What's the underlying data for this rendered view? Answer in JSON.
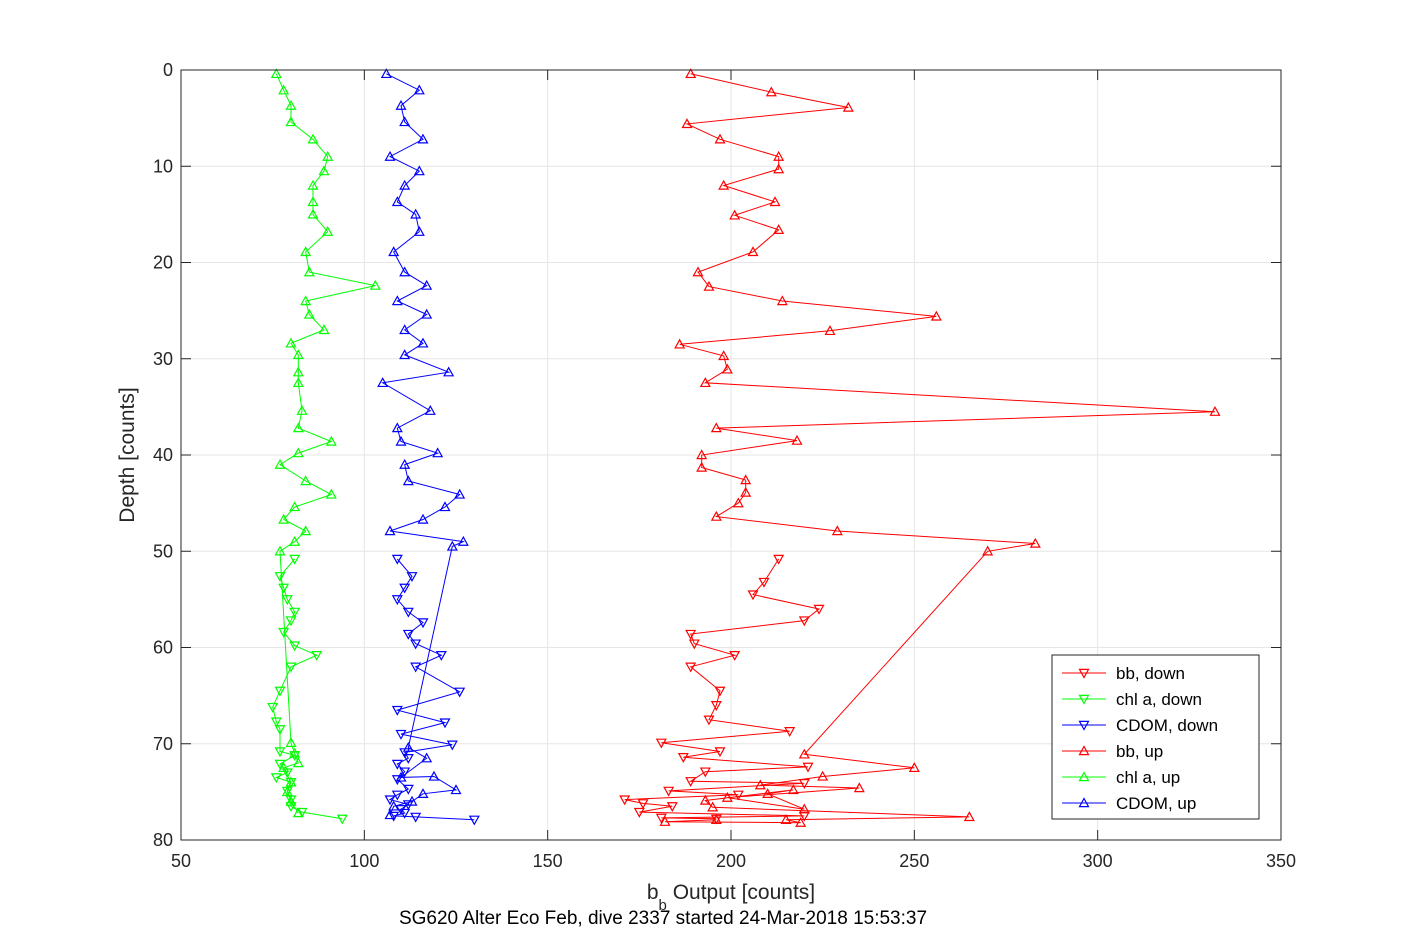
{
  "chart_data": {
    "type": "line",
    "xlabel": "b",
    "xlabel_subscript": "b",
    "xlabel_rest": " Output [counts]",
    "ylabel": "Depth [counts]",
    "caption": "SG620 Alter Eco Feb, dive 2337 started 24-Mar-2018 15:53:37",
    "xlim": [
      50,
      350
    ],
    "ylim": [
      0,
      80
    ],
    "y_reversed": true,
    "grid": true,
    "xticks": [
      50,
      100,
      150,
      200,
      250,
      300,
      350
    ],
    "yticks": [
      0,
      10,
      20,
      30,
      40,
      50,
      60,
      70,
      80
    ],
    "legend_position": "bottom-right",
    "series": [
      {
        "name": "bb, down",
        "color": "#ff0000",
        "marker": "triangle-down",
        "points": [
          [
            213,
            50.8
          ],
          [
            209,
            53.2
          ],
          [
            206,
            54.5
          ],
          [
            224,
            56.0
          ],
          [
            220,
            57.2
          ],
          [
            189,
            58.6
          ],
          [
            190,
            59.6
          ],
          [
            201,
            60.8
          ],
          [
            189,
            62.0
          ],
          [
            197,
            64.5
          ],
          [
            196,
            66.0
          ],
          [
            194,
            67.5
          ],
          [
            216,
            68.7
          ],
          [
            181,
            69.9
          ],
          [
            197,
            70.8
          ],
          [
            187,
            71.4
          ],
          [
            221,
            72.4
          ],
          [
            193,
            72.9
          ],
          [
            189,
            73.9
          ],
          [
            220,
            74.1
          ],
          [
            183,
            74.9
          ],
          [
            202,
            75.3
          ],
          [
            171,
            75.8
          ],
          [
            176,
            76.2
          ],
          [
            184,
            76.5
          ],
          [
            175,
            77.1
          ],
          [
            220,
            77.5
          ],
          [
            181,
            77.7
          ],
          [
            196,
            77.8
          ]
        ]
      },
      {
        "name": "chl a, down",
        "color": "#00ff00",
        "marker": "triangle-down",
        "points": [
          [
            81,
            50.8
          ],
          [
            77,
            52.6
          ],
          [
            78,
            53.8
          ],
          [
            79,
            55.0
          ],
          [
            81,
            56.3
          ],
          [
            80,
            57.2
          ],
          [
            78,
            58.4
          ],
          [
            81,
            59.8
          ],
          [
            87,
            60.8
          ],
          [
            80,
            62.0
          ],
          [
            77,
            64.5
          ],
          [
            75,
            66.2
          ],
          [
            76,
            67.7
          ],
          [
            77,
            68.5
          ],
          [
            77,
            70.8
          ],
          [
            81,
            71.2
          ],
          [
            77,
            72.1
          ],
          [
            79,
            73.0
          ],
          [
            76,
            73.5
          ],
          [
            80,
            74.0
          ],
          [
            79,
            74.9
          ],
          [
            80,
            75.8
          ],
          [
            80,
            76.5
          ],
          [
            83,
            77.1
          ],
          [
            94,
            77.8
          ]
        ]
      },
      {
        "name": "CDOM, down",
        "color": "#0000ff",
        "marker": "triangle-down",
        "points": [
          [
            109,
            50.8
          ],
          [
            113,
            52.6
          ],
          [
            111,
            53.8
          ],
          [
            109,
            55.0
          ],
          [
            112,
            56.3
          ],
          [
            116,
            57.4
          ],
          [
            112,
            58.6
          ],
          [
            114,
            59.6
          ],
          [
            121,
            60.8
          ],
          [
            114,
            62.0
          ],
          [
            126,
            64.6
          ],
          [
            109,
            66.5
          ],
          [
            122,
            67.8
          ],
          [
            110,
            69.0
          ],
          [
            124,
            70.1
          ],
          [
            111,
            70.9
          ],
          [
            112,
            71.5
          ],
          [
            109,
            72.1
          ],
          [
            111,
            72.9
          ],
          [
            109,
            73.7
          ],
          [
            112,
            74.7
          ],
          [
            109,
            75.3
          ],
          [
            107,
            75.8
          ],
          [
            112,
            76.3
          ],
          [
            110,
            76.8
          ],
          [
            111,
            77.2
          ],
          [
            108,
            77.5
          ],
          [
            114,
            77.6
          ],
          [
            130,
            77.9
          ]
        ]
      },
      {
        "name": "bb, up",
        "color": "#ff0000",
        "marker": "triangle-up",
        "points": [
          [
            189,
            0.4
          ],
          [
            211,
            2.3
          ],
          [
            232,
            3.9
          ],
          [
            188,
            5.6
          ],
          [
            197,
            7.2
          ],
          [
            213,
            9.0
          ],
          [
            213,
            10.3
          ],
          [
            198,
            12.0
          ],
          [
            212,
            13.7
          ],
          [
            201,
            15.1
          ],
          [
            213,
            16.6
          ],
          [
            206,
            18.9
          ],
          [
            191,
            21.0
          ],
          [
            194,
            22.5
          ],
          [
            214,
            24.0
          ],
          [
            256,
            25.6
          ],
          [
            227,
            27.1
          ],
          [
            186,
            28.5
          ],
          [
            198,
            29.7
          ],
          [
            199,
            31.1
          ],
          [
            193,
            32.5
          ],
          [
            332,
            35.5
          ],
          [
            196,
            37.2
          ],
          [
            218,
            38.5
          ],
          [
            192,
            40.0
          ],
          [
            192,
            41.3
          ],
          [
            204,
            42.6
          ],
          [
            204,
            43.9
          ],
          [
            202,
            45.0
          ],
          [
            196,
            46.4
          ],
          [
            229,
            47.9
          ],
          [
            283,
            49.2
          ],
          [
            270,
            50.0
          ],
          [
            220,
            71.1
          ],
          [
            250,
            72.5
          ],
          [
            225,
            73.4
          ],
          [
            208,
            74.3
          ],
          [
            235,
            74.6
          ],
          [
            199,
            75.6
          ],
          [
            220,
            76.8
          ],
          [
            210,
            75.2
          ],
          [
            217,
            74.8
          ],
          [
            193,
            75.9
          ],
          [
            195,
            76.6
          ],
          [
            265,
            77.6
          ],
          [
            215,
            77.9
          ],
          [
            219,
            78.2
          ],
          [
            182,
            78.1
          ],
          [
            196,
            77.9
          ]
        ]
      },
      {
        "name": "chl a, up",
        "color": "#00ff00",
        "marker": "triangle-up",
        "points": [
          [
            76,
            0.4
          ],
          [
            78,
            2.1
          ],
          [
            80,
            3.7
          ],
          [
            80,
            5.4
          ],
          [
            86,
            7.2
          ],
          [
            90,
            9.0
          ],
          [
            89,
            10.5
          ],
          [
            86,
            12.0
          ],
          [
            86,
            13.7
          ],
          [
            86,
            15.0
          ],
          [
            90,
            16.8
          ],
          [
            84,
            18.9
          ],
          [
            85,
            21.0
          ],
          [
            103,
            22.4
          ],
          [
            84,
            24.0
          ],
          [
            85,
            25.4
          ],
          [
            89,
            27.0
          ],
          [
            80,
            28.4
          ],
          [
            82,
            29.6
          ],
          [
            82,
            31.4
          ],
          [
            82,
            32.5
          ],
          [
            83,
            35.4
          ],
          [
            82,
            37.2
          ],
          [
            91,
            38.6
          ],
          [
            82,
            39.8
          ],
          [
            77,
            41.0
          ],
          [
            84,
            42.7
          ],
          [
            91,
            44.1
          ],
          [
            81,
            45.4
          ],
          [
            78,
            46.7
          ],
          [
            84,
            47.9
          ],
          [
            81,
            49.0
          ],
          [
            77,
            50.0
          ],
          [
            80,
            69.9
          ],
          [
            81,
            71.0
          ],
          [
            82,
            72.0
          ],
          [
            78,
            72.5
          ],
          [
            80,
            74.0
          ],
          [
            79,
            75.0
          ],
          [
            80,
            76.0
          ],
          [
            82,
            77.2
          ]
        ]
      },
      {
        "name": "CDOM, up",
        "color": "#0000ff",
        "marker": "triangle-up",
        "points": [
          [
            106,
            0.4
          ],
          [
            115,
            2.1
          ],
          [
            110,
            3.7
          ],
          [
            111,
            5.4
          ],
          [
            116,
            7.2
          ],
          [
            107,
            9.0
          ],
          [
            115,
            10.5
          ],
          [
            111,
            12.0
          ],
          [
            109,
            13.7
          ],
          [
            114,
            15.0
          ],
          [
            115,
            16.8
          ],
          [
            108,
            18.9
          ],
          [
            111,
            21.0
          ],
          [
            117,
            22.4
          ],
          [
            109,
            24.0
          ],
          [
            117,
            25.4
          ],
          [
            111,
            27.0
          ],
          [
            116,
            28.4
          ],
          [
            111,
            29.6
          ],
          [
            123,
            31.4
          ],
          [
            105,
            32.5
          ],
          [
            118,
            35.4
          ],
          [
            109,
            37.2
          ],
          [
            110,
            38.6
          ],
          [
            120,
            39.8
          ],
          [
            111,
            41.0
          ],
          [
            112,
            42.7
          ],
          [
            126,
            44.1
          ],
          [
            122,
            45.4
          ],
          [
            116,
            46.7
          ],
          [
            107,
            47.9
          ],
          [
            127,
            49.0
          ],
          [
            124,
            49.5
          ],
          [
            112,
            70.4
          ],
          [
            117,
            71.5
          ],
          [
            110,
            73.5
          ],
          [
            119,
            73.4
          ],
          [
            125,
            74.8
          ],
          [
            116,
            75.2
          ],
          [
            113,
            76.0
          ],
          [
            108,
            76.5
          ],
          [
            107,
            77.4
          ]
        ]
      }
    ]
  }
}
